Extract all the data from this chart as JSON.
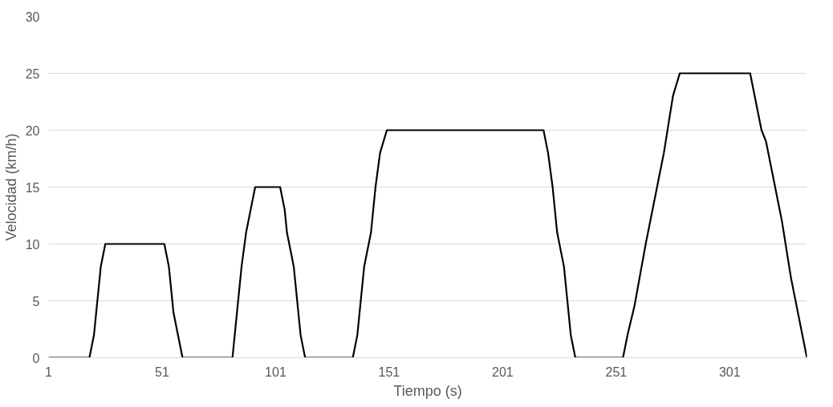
{
  "chart_data": {
    "type": "line",
    "xlabel": "Tiempo (s)",
    "ylabel": "Velocidad (km/h)",
    "x": [
      1,
      19,
      21,
      24,
      26,
      52,
      54,
      56,
      60,
      82,
      83,
      86,
      88,
      90,
      92,
      103,
      105,
      106,
      109,
      112,
      114,
      135,
      137,
      140,
      143,
      145,
      147,
      150,
      219,
      221,
      223,
      225,
      228,
      231,
      233,
      254,
      256,
      259,
      264,
      270,
      272,
      276,
      279,
      310,
      315,
      317,
      324,
      328,
      335
    ],
    "series": [
      {
        "color": "#000000",
        "values": [
          0,
          0,
          2,
          8,
          10,
          10,
          8,
          4,
          0,
          0,
          2,
          8,
          11,
          13,
          15,
          15,
          13,
          11,
          8,
          2,
          0,
          0,
          2,
          8,
          11,
          15,
          18,
          20,
          20,
          18,
          15,
          11,
          8,
          2,
          0,
          0,
          2,
          4.5,
          10,
          16,
          18,
          23,
          25,
          25,
          20,
          19,
          12,
          7,
          0
        ]
      }
    ],
    "xlim": [
      1,
      335
    ],
    "ylim": [
      0,
      30
    ],
    "xticks": [
      1,
      51,
      101,
      151,
      201,
      251,
      301
    ],
    "yticks": [
      0,
      5,
      10,
      15,
      20,
      25,
      30
    ],
    "grid": "y",
    "marker": "none",
    "line_style": "solid"
  }
}
